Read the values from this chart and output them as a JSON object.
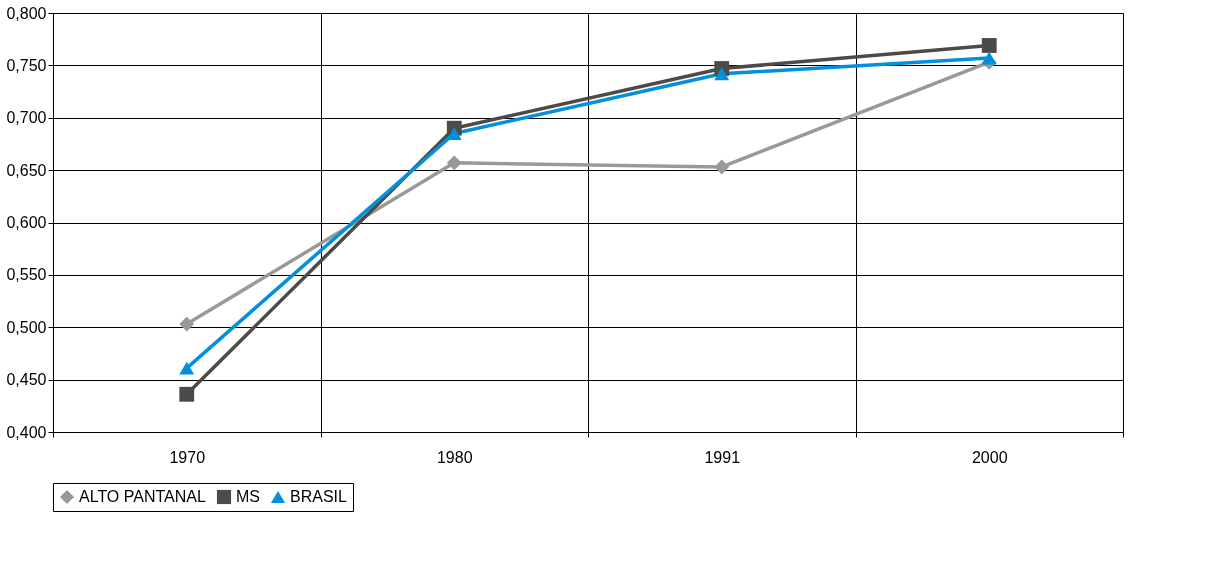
{
  "chart_data": {
    "type": "line",
    "categories": [
      "1970",
      "1980",
      "1991",
      "2000"
    ],
    "series": [
      {
        "name": "ALTO PANTANAL",
        "color": "#999999",
        "marker": "diamond",
        "values": [
          0.503,
          0.657,
          0.653,
          0.753
        ]
      },
      {
        "name": "MS",
        "color": "#4d4a48",
        "marker": "square",
        "values": [
          0.436,
          0.69,
          0.747,
          0.769
        ]
      },
      {
        "name": "BRASIL",
        "color": "#0090dd",
        "marker": "triangle",
        "values": [
          0.461,
          0.685,
          0.742,
          0.757
        ]
      }
    ],
    "ylim": [
      0.4,
      0.8
    ],
    "yticks": [
      {
        "value": 0.4,
        "label": "0,400"
      },
      {
        "value": 0.45,
        "label": "0,450"
      },
      {
        "value": 0.5,
        "label": "0,500"
      },
      {
        "value": 0.55,
        "label": "0,550"
      },
      {
        "value": 0.6,
        "label": "0,600"
      },
      {
        "value": 0.65,
        "label": "0,650"
      },
      {
        "value": 0.7,
        "label": "0,700"
      },
      {
        "value": 0.75,
        "label": "0,750"
      },
      {
        "value": 0.8,
        "label": "0,800"
      }
    ],
    "grid": true,
    "legend": "bottom",
    "line_style": "solid"
  }
}
